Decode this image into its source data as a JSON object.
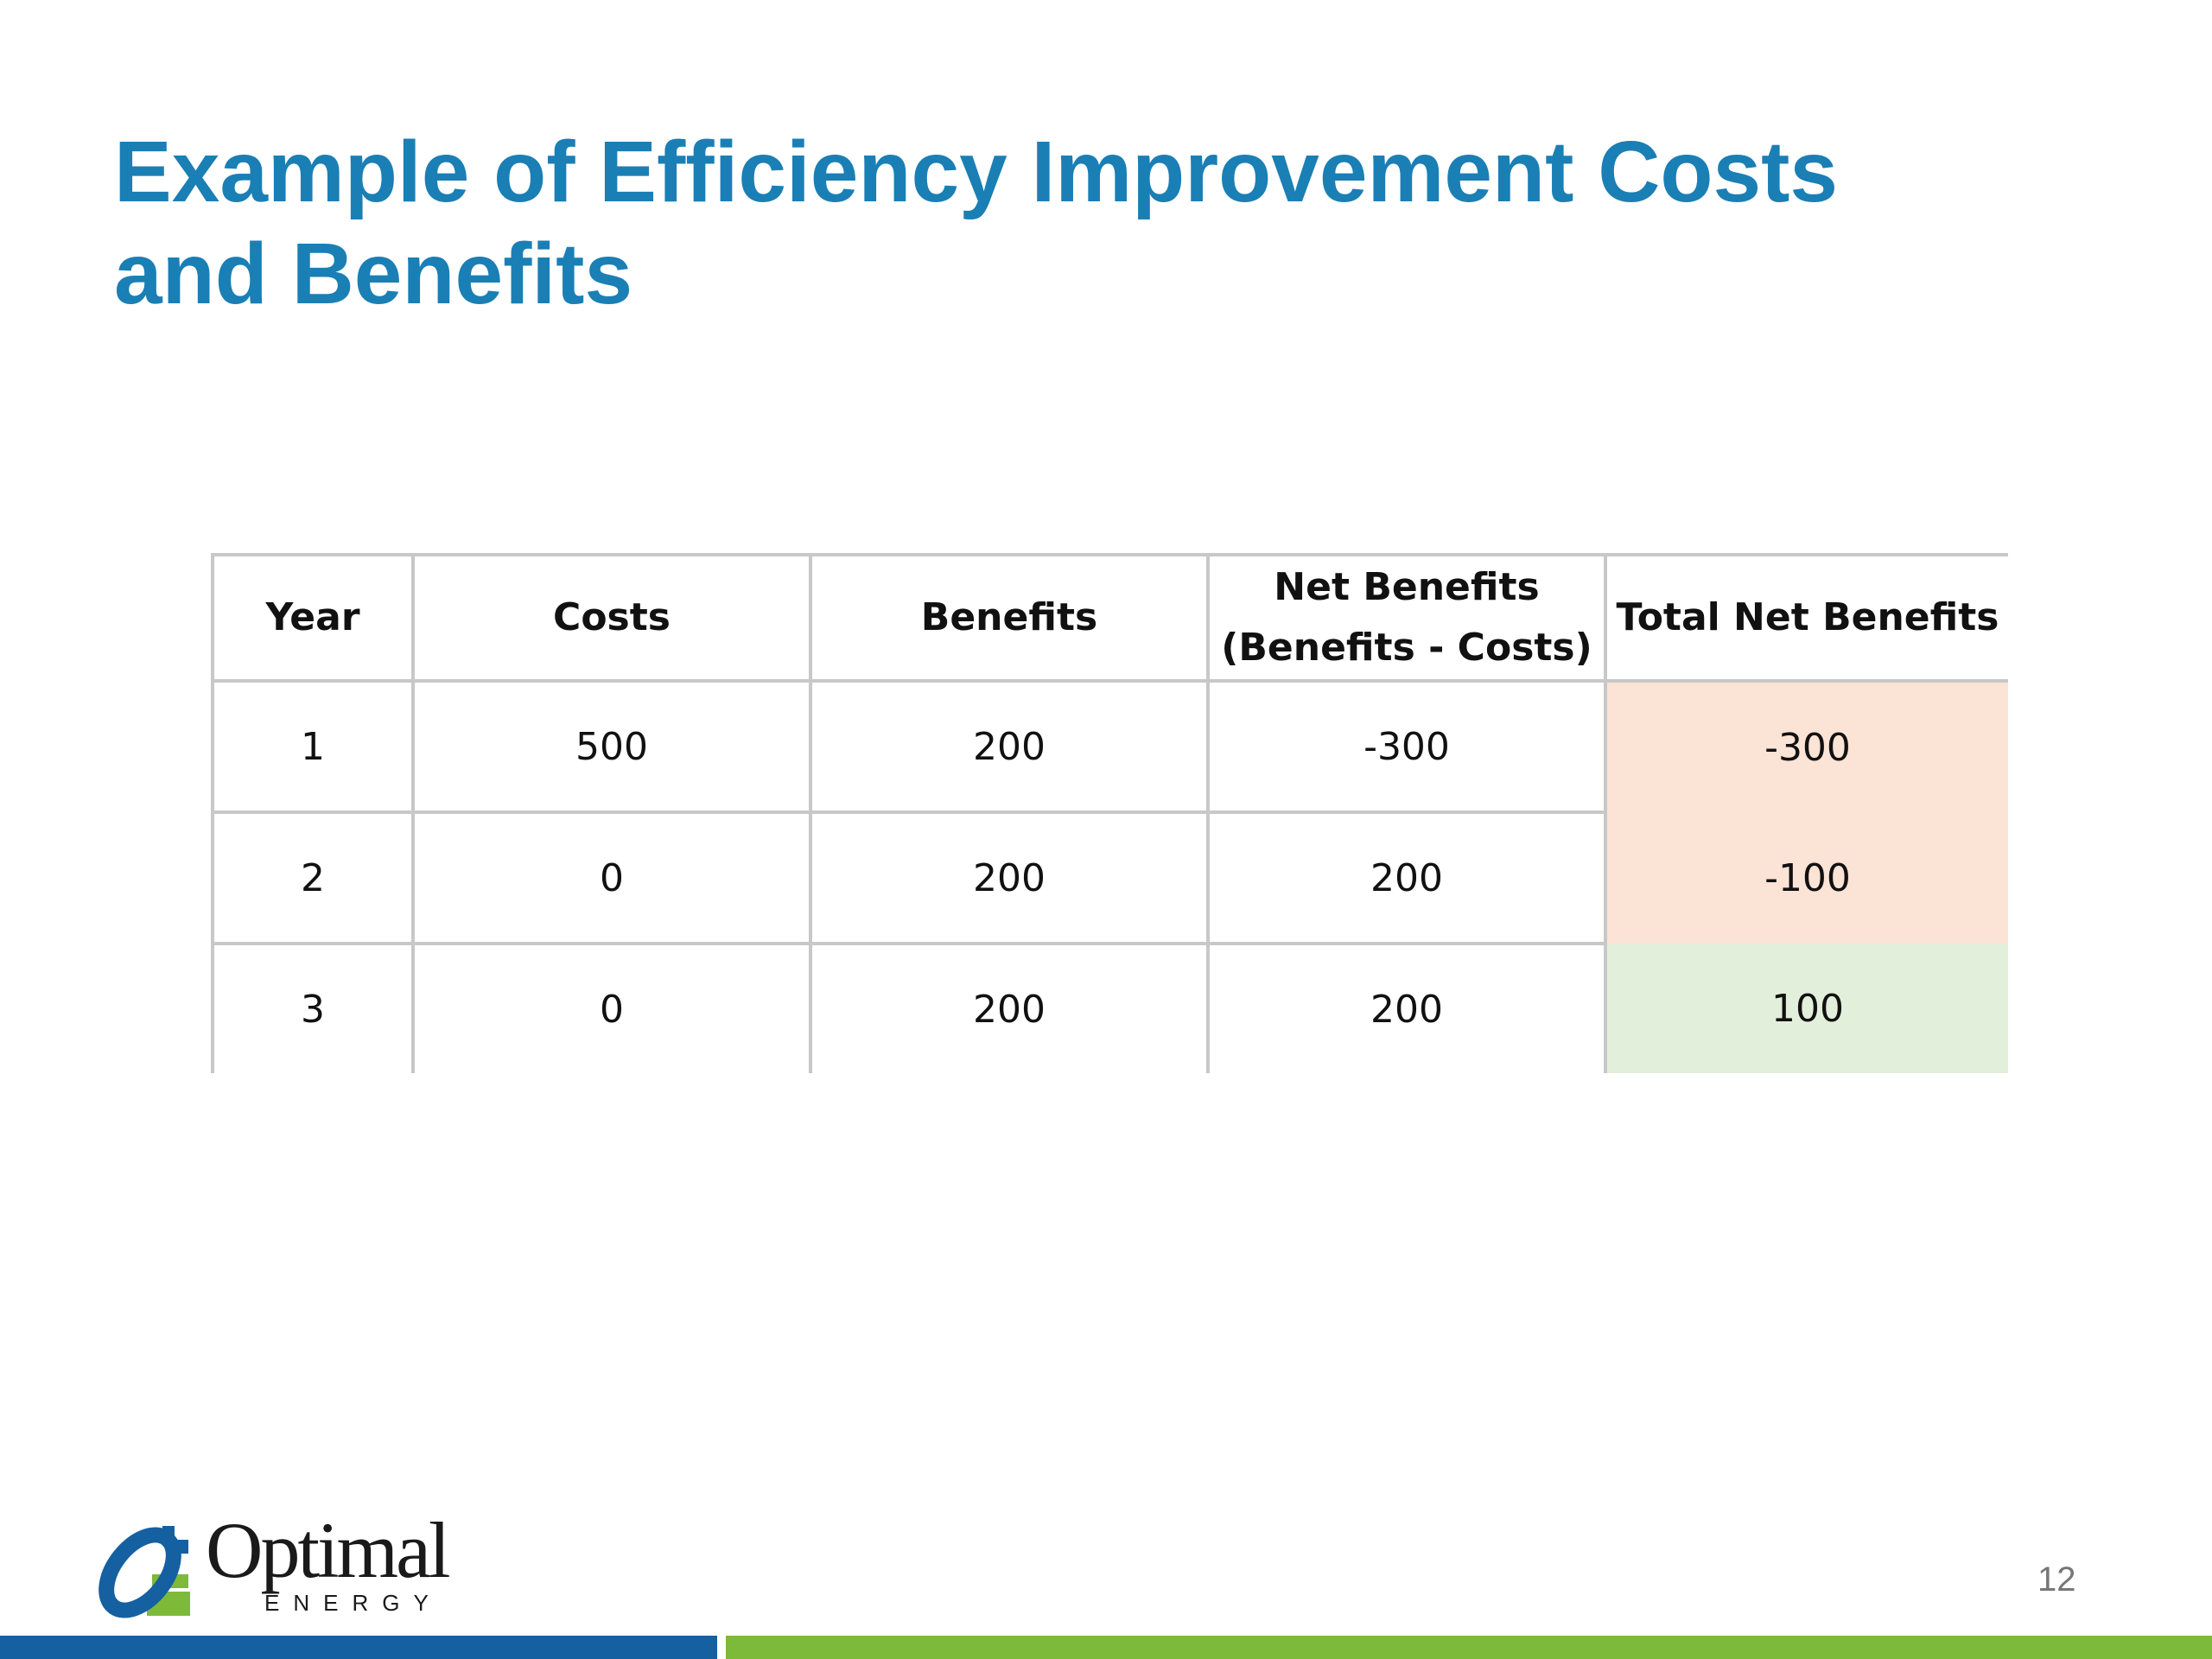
{
  "slide": {
    "title_line1": "Example of Efficiency Improvement Costs",
    "title_line2": "and Benefits",
    "page_number": "12"
  },
  "table": {
    "headers": {
      "year": "Year",
      "costs": "Costs",
      "benefits": "Benefits",
      "net_line1": "Net Benefits",
      "net_line2": "(Benefits - Costs)",
      "total": "Total Net Benefits"
    },
    "rows": [
      {
        "year": "1",
        "costs": "500",
        "benefits": "200",
        "net": "-300",
        "total": "-300"
      },
      {
        "year": "2",
        "costs": "0",
        "benefits": "200",
        "net": "200",
        "total": "-100"
      },
      {
        "year": "3",
        "costs": "0",
        "benefits": "200",
        "net": "200",
        "total": "100"
      }
    ],
    "colors": {
      "negative_fill": "#fbe3d6",
      "positive_fill": "#e2efda"
    }
  },
  "logo": {
    "word": "Optimal",
    "sub": "ENERGY"
  },
  "colors": {
    "title": "#1a7fb5",
    "bar_blue": "#1560a0",
    "bar_green": "#7dba3a"
  }
}
